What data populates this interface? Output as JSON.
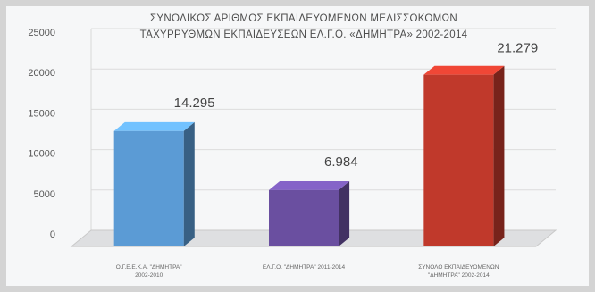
{
  "chart_data": {
    "type": "bar",
    "title": "ΣΥΝΟΛΙΚΟΣ ΑΡΙΘΜΟΣ ΕΚΠΑΙΔΕΥΟΜΕΝΩΝ ΜΕΛΙΣΣΟΚΟΜΩΝ",
    "subtitle": "ΤΑΧΥΡΡΥΘΜΩΝ ΕΚΠΑΙΔΕΥΣΕΩΝ ΕΛ.Γ.Ο. «ΔΗΜΗΤΡΑ» 2002-2014",
    "categories": [
      [
        "Ο.Γ.Ε.Ε.Κ.Α. \"ΔΗΜΗΤΡΑ\"",
        "2002-2010"
      ],
      [
        "ΕΛ.Γ.Ο. \"ΔΗΜΗΤΡΑ\" 2011-2014"
      ],
      [
        "ΣΥΝΟΛΟ ΕΚΠΑΙΔΕΥΟΜΕΝΩΝ",
        "\"ΔΗΜΗΤΡΑ\" 2002-2014"
      ]
    ],
    "values": [
      14295,
      6984,
      21279
    ],
    "data_labels": [
      "14.295",
      "6.984",
      "21.279"
    ],
    "bar_colors": [
      "#5b9bd5",
      "#6a4fa0",
      "#c0392b"
    ],
    "ylim": [
      0,
      25000
    ],
    "yticks": [
      "0",
      "5000",
      "10000",
      "15000",
      "20000",
      "25000"
    ],
    "grid": true,
    "xlabel": "",
    "ylabel": ""
  }
}
